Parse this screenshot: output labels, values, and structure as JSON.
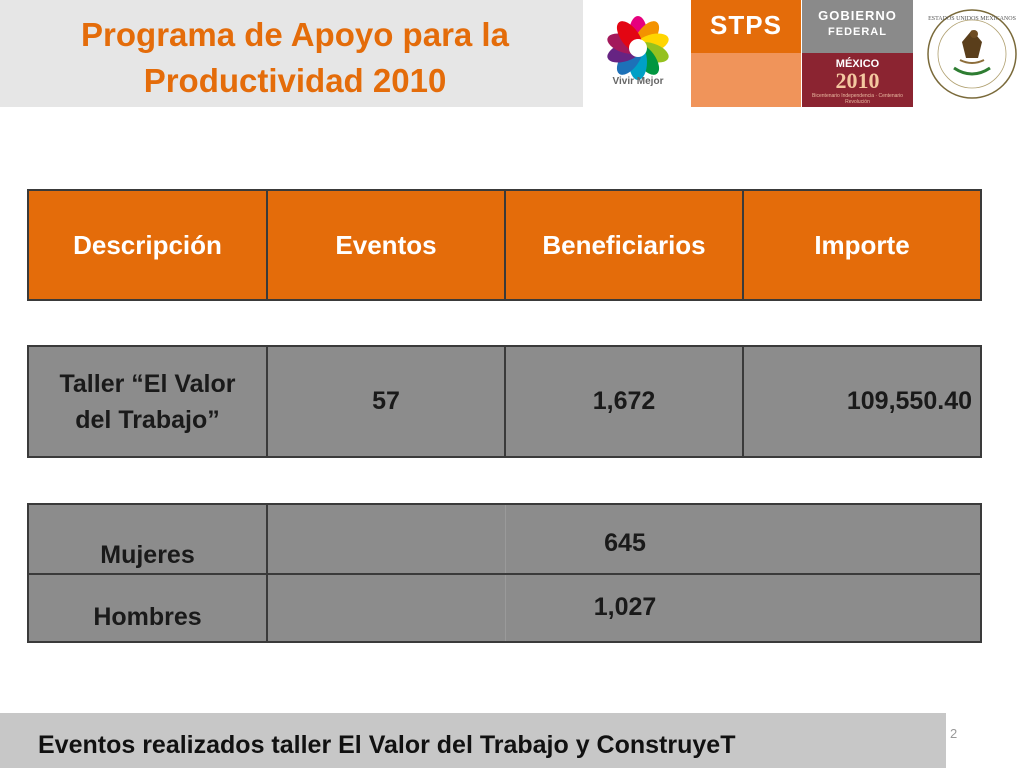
{
  "header": {
    "title": "Programa de Apoyo para la Productividad 2010",
    "logos": {
      "vivir_mejor": "Vivir Mejor",
      "stps": "STPS",
      "gobierno_line1": "Gobierno",
      "gobierno_line2": "Federal",
      "mexico": "MÉXICO",
      "mexico_year": "2010",
      "mexico_sub": "Bicentenario Independencia · Centenario Revolución",
      "seal_text": "ESTADOS UNIDOS MEXICANOS"
    }
  },
  "table": {
    "headers": [
      "Descripción",
      "Eventos",
      "Beneficiarios",
      "Importe"
    ],
    "row": {
      "descripcion": "Taller “El Valor del Trabajo”",
      "eventos": "57",
      "beneficiarios": "1,672",
      "importe": "109,550.40"
    }
  },
  "gender": {
    "rows": [
      {
        "label": "Mujeres",
        "value": "645"
      },
      {
        "label": "Hombres",
        "value": "1,027"
      }
    ]
  },
  "footer": {
    "text": "Eventos realizados  taller El Valor del Trabajo y ConstruyeT",
    "page_number": "2"
  },
  "colors": {
    "accent": "#e46c0a",
    "row_gray": "#8c8c8c",
    "gob_maroon": "#8b2431"
  }
}
